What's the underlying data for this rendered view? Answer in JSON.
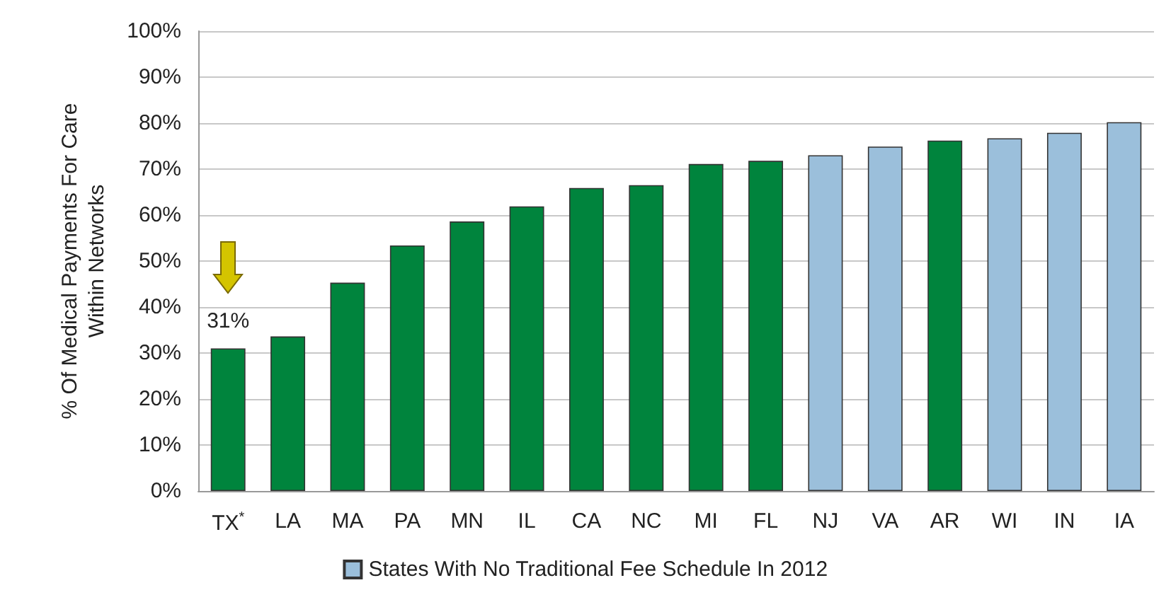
{
  "chart_data": {
    "type": "bar",
    "ylabel": "% Of Medical Payments For Care\nWithin Networks",
    "categories": [
      "TX$^{*}$",
      "LA",
      "MA",
      "PA",
      "MN",
      "IL",
      "CA",
      "NC",
      "MI",
      "FL",
      "NJ",
      "VA",
      "AR",
      "WI",
      "IN",
      "IA"
    ],
    "series": [
      {
        "color": "#00843d",
        "values": [
          31,
          33.6,
          45.3,
          53.4,
          58.6,
          61.9,
          65.9,
          66.5,
          71.1,
          71.8,
          null,
          null,
          76.2,
          null,
          null,
          null
        ]
      },
      {
        "name": "States With No Traditional Fee Schedule In 2012",
        "color": "#9bbfdb",
        "values": [
          null,
          null,
          null,
          null,
          null,
          null,
          null,
          null,
          null,
          null,
          73.0,
          74.9,
          null,
          76.7,
          77.9,
          80.2
        ]
      }
    ],
    "ylim": [
      0,
      100
    ],
    "yticks": [
      {
        "value": 0,
        "label": "0%"
      },
      {
        "value": 10,
        "label": "10%"
      },
      {
        "value": 20,
        "label": "20%"
      },
      {
        "value": 30,
        "label": "30%"
      },
      {
        "value": 40,
        "label": "40%"
      },
      {
        "value": 50,
        "label": "50%"
      },
      {
        "value": 60,
        "label": "60%"
      },
      {
        "value": 70,
        "label": "70%"
      },
      {
        "value": 80,
        "label": "80%"
      },
      {
        "value": 90,
        "label": "90%"
      },
      {
        "value": 100,
        "label": "100%"
      }
    ],
    "annotations": [
      {
        "text": "31%",
        "x": "TX$^{*}$",
        "y": 31
      }
    ],
    "grid": "y",
    "legend": "bottom"
  }
}
